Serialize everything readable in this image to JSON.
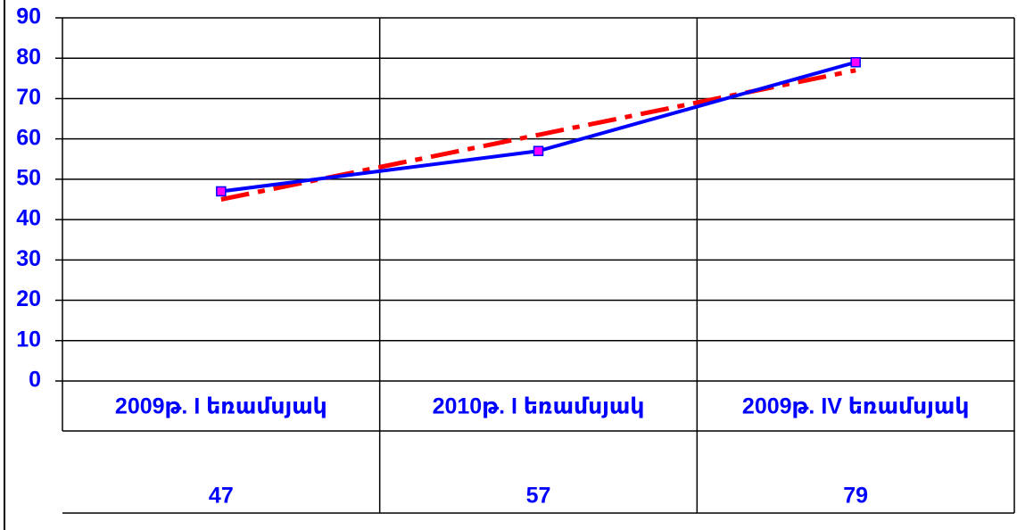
{
  "chart_data": {
    "type": "line",
    "categories": [
      "2009թ.  I եռամսյակ",
      "2010թ. I եռամսյակ",
      "2009թ. IV եռամսյակ"
    ],
    "series": [
      {
        "color": "#0000ff",
        "marker_color": "#ff00ff",
        "values": [
          47,
          57,
          79
        ]
      },
      {
        "color": "#ff0000",
        "dashed": true,
        "values": [
          45,
          61,
          77
        ]
      }
    ],
    "ylim": [
      0,
      90
    ],
    "yticks": [
      0,
      10,
      20,
      30,
      40,
      50,
      60,
      70,
      80,
      90
    ],
    "grid": true,
    "data_table": true
  }
}
